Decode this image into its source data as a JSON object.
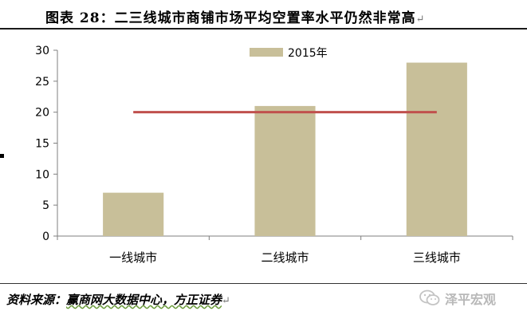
{
  "title": "图表 28：二三线城市商铺市场平均空置率水平仍然非常高",
  "source": {
    "prefix": "资料来源：",
    "text": "赢商网大数据中心，方正证券"
  },
  "watermark": {
    "text": "泽平宏观",
    "icon": "wechat-icon"
  },
  "chart_data": {
    "type": "bar",
    "categories": [
      "一线城市",
      "二线城市",
      "三线城市"
    ],
    "series": [
      {
        "name": "2015年",
        "values": [
          7,
          21,
          28
        ],
        "color": "#c8bf99"
      }
    ],
    "reference_line": {
      "value": 20,
      "color": "#c0504d"
    },
    "ylim": [
      0,
      30
    ],
    "yticks": [
      0,
      5,
      10,
      15,
      20,
      25,
      30
    ],
    "legend_position": "top-center",
    "grid": false
  }
}
